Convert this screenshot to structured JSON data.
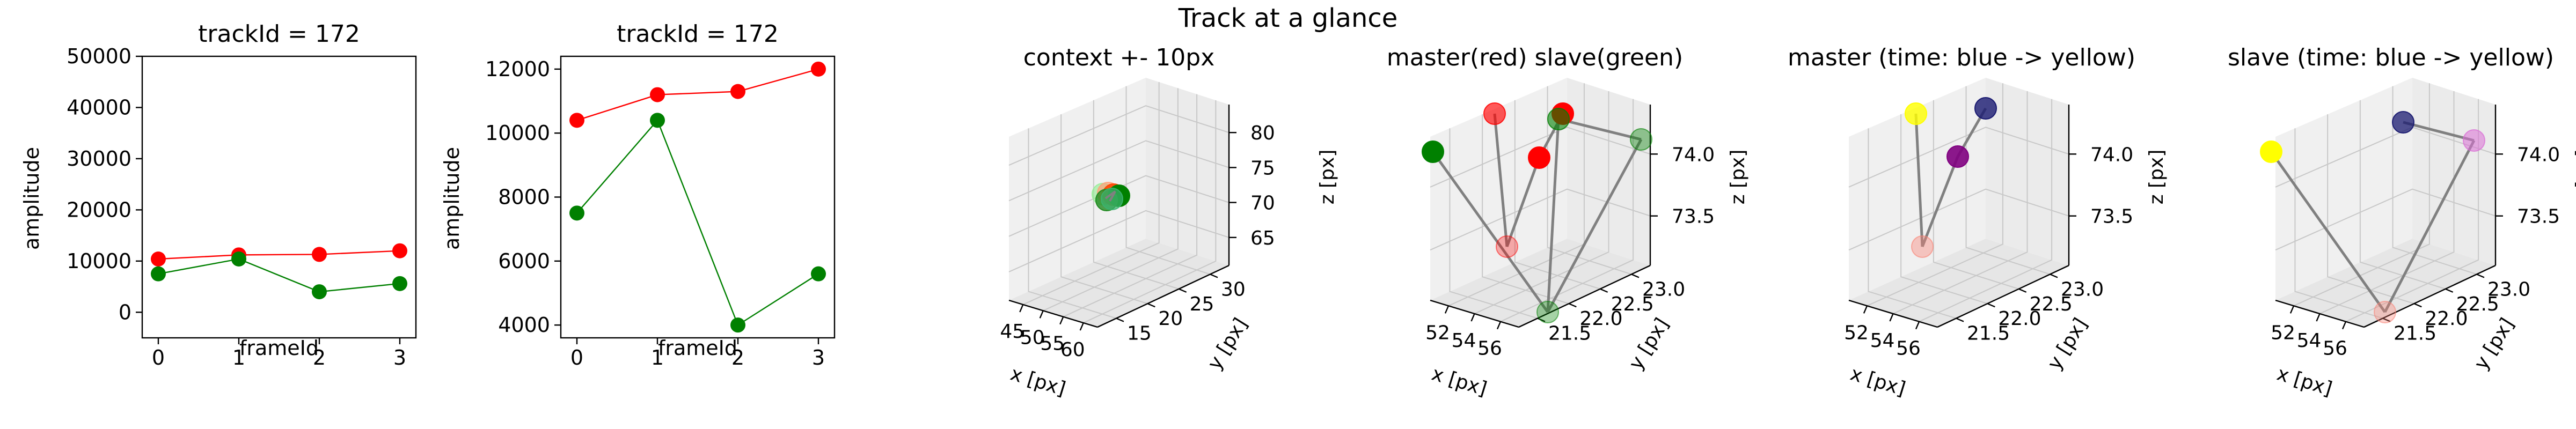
{
  "suptitle": "Track at a glance",
  "colors": {
    "master": "#ff0000",
    "slave": "#008000",
    "link": "#808080"
  },
  "chart_data": [
    {
      "type": "line",
      "title": "trackId = 172",
      "xlabel": "frameId",
      "ylabel": "amplitude",
      "x": [
        0,
        1,
        2,
        3
      ],
      "xticks": [
        "0",
        "1",
        "2",
        "3"
      ],
      "ylim": [
        -5000,
        50000
      ],
      "yticks": [
        "0",
        "10000",
        "20000",
        "30000",
        "40000",
        "50000"
      ],
      "series": [
        {
          "color": "#ff0000",
          "values": [
            10400,
            11200,
            11300,
            12000
          ]
        },
        {
          "color": "#008000",
          "values": [
            7500,
            10400,
            4000,
            5600
          ]
        }
      ]
    },
    {
      "type": "line",
      "title": "trackId = 172",
      "xlabel": "frameId",
      "ylabel": "amplitude",
      "x": [
        0,
        1,
        2,
        3
      ],
      "xticks": [
        "0",
        "1",
        "2",
        "3"
      ],
      "ylim": [
        3600,
        12400
      ],
      "yticks": [
        "4000",
        "6000",
        "8000",
        "10000",
        "12000"
      ],
      "series": [
        {
          "color": "#ff0000",
          "values": [
            10400,
            11200,
            11300,
            12000
          ]
        },
        {
          "color": "#008000",
          "values": [
            7500,
            10400,
            4000,
            5600
          ]
        }
      ]
    },
    {
      "type": "scatter",
      "title": "context +- 10px",
      "xlabel": "x [px]",
      "ylabel": "y [px]",
      "zlabel": "z [px]",
      "xticks": [
        "45",
        "50",
        "55",
        "60"
      ],
      "yticks": [
        "15",
        "20",
        "25",
        "30"
      ],
      "zticks": [
        "65",
        "70",
        "75",
        "80"
      ]
    },
    {
      "type": "scatter",
      "title": "master(red) slave(green)",
      "xlabel": "x [px]",
      "ylabel": "y [px]",
      "zlabel": "z [px]",
      "xticks": [
        "52",
        "54",
        "56"
      ],
      "yticks": [
        "21.5",
        "22.0",
        "22.5",
        "23.0"
      ],
      "zticks": [
        "73.5",
        "74.0"
      ]
    },
    {
      "type": "scatter",
      "title": "master (time: blue -> yellow)",
      "xlabel": "x [px]",
      "ylabel": "y [px]",
      "zlabel": "z [px]",
      "xticks": [
        "52",
        "54",
        "56"
      ],
      "yticks": [
        "21.5",
        "22.0",
        "22.5",
        "23.0"
      ],
      "zticks": [
        "73.5",
        "74.0"
      ]
    },
    {
      "type": "scatter",
      "title": "slave (time: blue -> yellow)",
      "xlabel": "x [px]",
      "ylabel": "y [px]",
      "zlabel": "z [px]",
      "xticks": [
        "52",
        "54",
        "56"
      ],
      "yticks": [
        "21.5",
        "22.0",
        "22.5",
        "23.0"
      ],
      "zticks": [
        "73.5",
        "74.0"
      ]
    }
  ]
}
